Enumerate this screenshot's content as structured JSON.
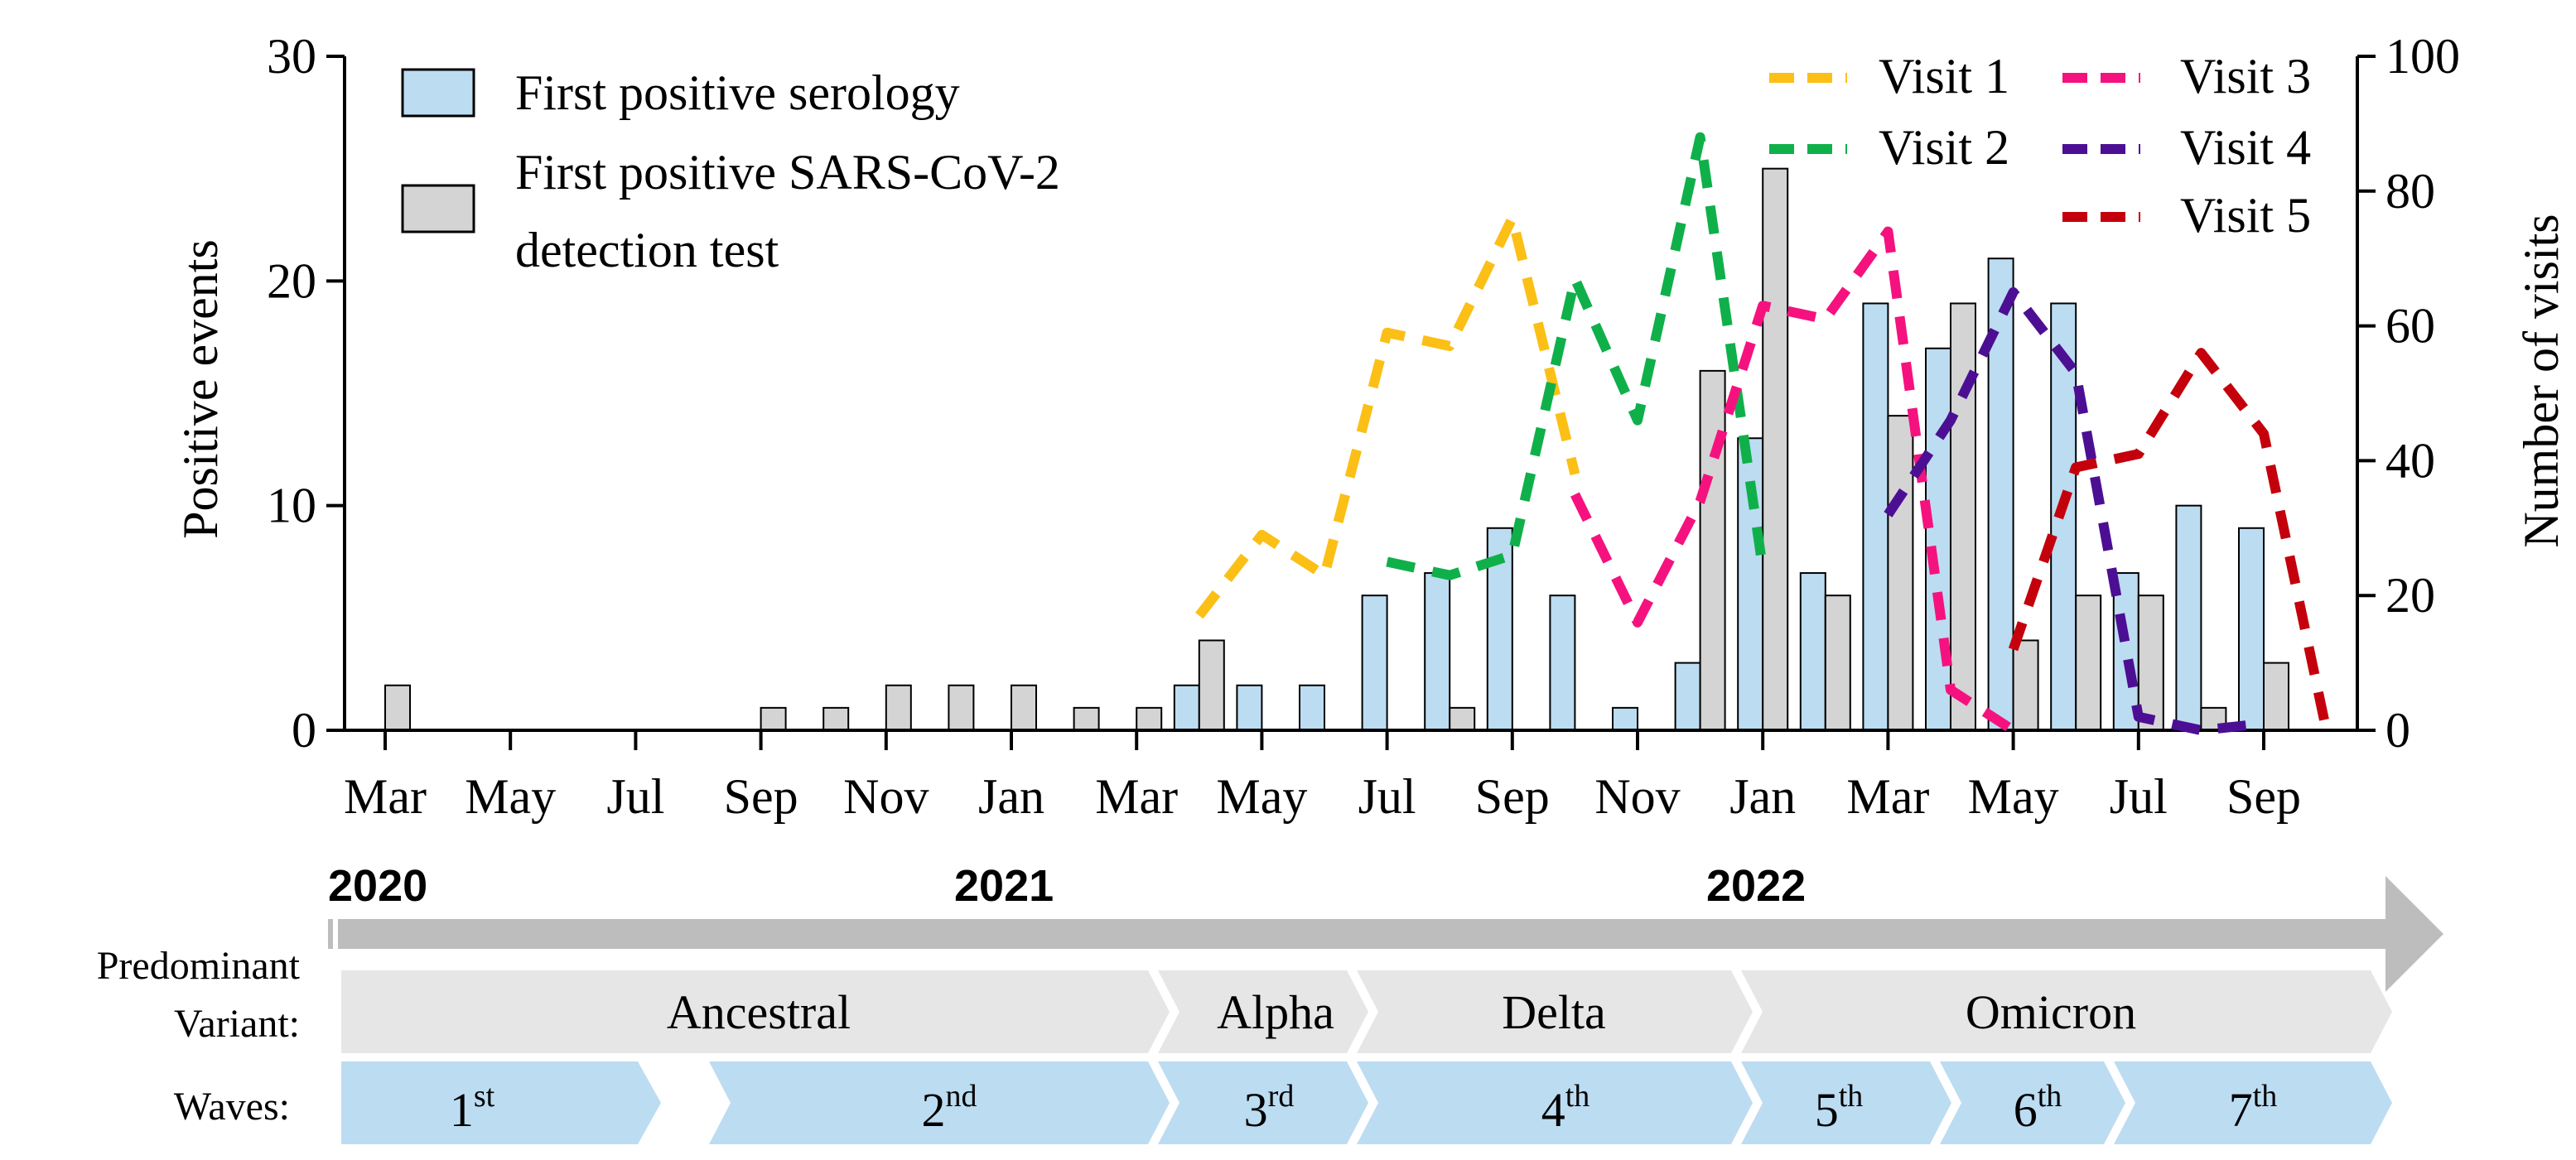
{
  "chart_data": {
    "type": "bar",
    "x": [
      "Mar 2020",
      "Apr 2020",
      "May 2020",
      "Jun 2020",
      "Jul 2020",
      "Aug 2020",
      "Sep 2020",
      "Oct 2020",
      "Nov 2020",
      "Dec 2020",
      "Jan 2021",
      "Feb 2021",
      "Mar 2021",
      "Apr 2021",
      "May 2021",
      "Jun 2021",
      "Jul 2021",
      "Aug 2021",
      "Sep 2021",
      "Oct 2021",
      "Nov 2021",
      "Dec 2021",
      "Jan 2022",
      "Feb 2022",
      "Mar 2022",
      "Apr 2022",
      "May 2022",
      "Jun 2022",
      "Jul 2022",
      "Aug 2022",
      "Sep 2022",
      "Oct 2022"
    ],
    "x_tick_labels": [
      "Mar",
      "May",
      "Jul",
      "Sep",
      "Nov",
      "Jan",
      "Mar",
      "May",
      "Jul",
      "Sep",
      "Nov",
      "Jan",
      "Mar",
      "May",
      "Jul",
      "Sep"
    ],
    "year_labels": [
      "2020",
      "2021",
      "2022"
    ],
    "ylabel": "Positive events",
    "ylim": [
      0,
      30
    ],
    "yticks": [
      "0",
      "10",
      "20",
      "30"
    ],
    "y2label": "Number of visits",
    "y2lim": [
      0,
      100
    ],
    "y2ticks": [
      "0",
      "20",
      "40",
      "60",
      "80",
      "100"
    ],
    "series": [
      {
        "name": "First positive serology",
        "kind": "bar",
        "color": "#bcdcf2",
        "values": [
          0,
          0,
          0,
          0,
          0,
          0,
          0,
          0,
          0,
          0,
          0,
          0,
          0,
          2,
          2,
          2,
          6,
          7,
          9,
          6,
          1,
          3,
          13,
          7,
          19,
          17,
          21,
          19,
          7,
          10,
          9,
          0
        ]
      },
      {
        "name": "First positive SARS-CoV-2 detection test",
        "kind": "bar",
        "color": "#d4d4d4",
        "values": [
          2,
          0,
          0,
          0,
          0,
          0,
          1,
          1,
          2,
          2,
          2,
          1,
          1,
          4,
          0,
          0,
          0,
          1,
          0,
          0,
          0,
          16,
          25,
          6,
          14,
          19,
          4,
          6,
          6,
          1,
          3,
          0
        ]
      },
      {
        "name": "Visit 1",
        "kind": "line",
        "axis": "right",
        "color": "#fbbf16",
        "points": [
          [
            13,
            17
          ],
          [
            14,
            29
          ],
          [
            15,
            23
          ],
          [
            16,
            59
          ],
          [
            17,
            57
          ],
          [
            18,
            76
          ],
          [
            19,
            38
          ]
        ]
      },
      {
        "name": "Visit 2",
        "kind": "line",
        "axis": "right",
        "color": "#0fb04a",
        "points": [
          [
            16,
            25
          ],
          [
            17,
            23
          ],
          [
            18,
            26
          ],
          [
            19,
            67
          ],
          [
            20,
            46
          ],
          [
            21,
            88
          ],
          [
            22,
            24
          ]
        ]
      },
      {
        "name": "Visit 3",
        "kind": "line",
        "axis": "right",
        "color": "#f5127f",
        "points": [
          [
            19,
            35
          ],
          [
            20,
            16
          ],
          [
            21,
            34
          ],
          [
            22,
            63
          ],
          [
            23,
            61
          ],
          [
            24,
            74
          ],
          [
            25,
            6
          ],
          [
            26,
            0
          ]
        ]
      },
      {
        "name": "Visit 4",
        "kind": "line",
        "axis": "right",
        "color": "#4c0f94",
        "points": [
          [
            24,
            32
          ],
          [
            25,
            46
          ],
          [
            26,
            65
          ],
          [
            27,
            53
          ],
          [
            28,
            2
          ],
          [
            29,
            0
          ],
          [
            30,
            1
          ]
        ]
      },
      {
        "name": "Visit 5",
        "kind": "line",
        "axis": "right",
        "color": "#c4000c",
        "points": [
          [
            26,
            12
          ],
          [
            27,
            39
          ],
          [
            28,
            41
          ],
          [
            29,
            56
          ],
          [
            30,
            44
          ],
          [
            31,
            0
          ]
        ]
      }
    ],
    "legend": {
      "bar_entries": [
        "First positive serology",
        "First positive SARS-CoV-2",
        "detection test"
      ],
      "line_entries": [
        "Visit 1",
        "Visit 2",
        "Visit 3",
        "Visit 4",
        "Visit 5"
      ]
    },
    "variant_row": {
      "label_line1": "Predominant",
      "label_line2": "Variant:",
      "segments": [
        "Ancestral",
        "Alpha",
        "Delta",
        "Omicron"
      ]
    },
    "waves_row": {
      "label": "Waves:",
      "segments": [
        {
          "num": "1",
          "sup": "st"
        },
        {
          "num": "2",
          "sup": "nd"
        },
        {
          "num": "3",
          "sup": "rd"
        },
        {
          "num": "4",
          "sup": "th"
        },
        {
          "num": "5",
          "sup": "th"
        },
        {
          "num": "6",
          "sup": "th"
        },
        {
          "num": "7",
          "sup": "th"
        }
      ]
    }
  },
  "colors": {
    "axis": "#000000",
    "timeline_arrow": "#bdbdbd",
    "variant_fill": "#e6e6e6",
    "wave_fill": "#bcdcf2"
  }
}
